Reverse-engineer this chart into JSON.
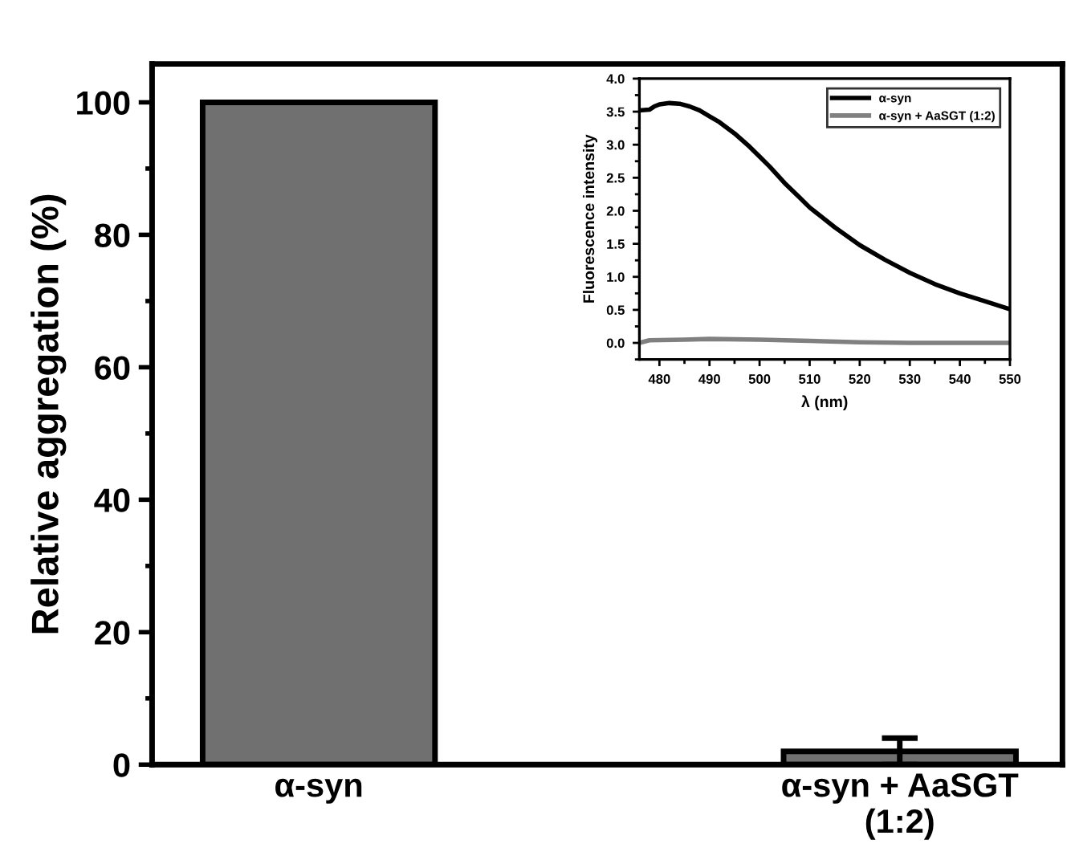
{
  "chart_data": [
    {
      "type": "bar",
      "ylabel": "Relative aggregation (%)",
      "categories": [
        "α-syn",
        "α-syn + AaSGT\n(1:2)"
      ],
      "values": [
        100,
        2
      ],
      "errors": [
        null,
        2
      ],
      "color": "#707070",
      "ylim": [
        0,
        105.8
      ],
      "yticks": [
        0,
        20,
        40,
        60,
        80,
        100
      ],
      "grid": false,
      "legend": false
    },
    {
      "type": "line",
      "xlabel": "λ (nm)",
      "ylabel": "Fluorescence intensity",
      "xlim": [
        476,
        550
      ],
      "xticks": [
        480,
        490,
        500,
        510,
        520,
        530,
        540,
        550
      ],
      "ylim": [
        -0.25,
        4.0
      ],
      "yticks": [
        {
          "value": 0,
          "label": "0.0"
        },
        0.5,
        {
          "value": 1,
          "label": "1.0"
        },
        1.5,
        {
          "value": 2,
          "label": "2.0"
        },
        2.5,
        {
          "value": 3,
          "label": "3.0"
        },
        3.5,
        {
          "value": 4,
          "label": "4.0"
        }
      ],
      "legend": "top right",
      "grid": false,
      "marker": "none",
      "line_style": "solid",
      "series": [
        {
          "name": "α-syn",
          "color": "#000000",
          "x": [
            476,
            478,
            479,
            480,
            482,
            484,
            486,
            488,
            490,
            492,
            495,
            498,
            500,
            502,
            505,
            508,
            510,
            515,
            520,
            525,
            530,
            535,
            540,
            545,
            550
          ],
          "values": [
            3.52,
            3.53,
            3.58,
            3.61,
            3.63,
            3.62,
            3.58,
            3.52,
            3.43,
            3.34,
            3.17,
            2.97,
            2.82,
            2.67,
            2.42,
            2.2,
            2.05,
            1.75,
            1.48,
            1.26,
            1.06,
            0.89,
            0.75,
            0.63,
            0.51
          ]
        },
        {
          "name": "α-syn + AaSGT (1:2)",
          "color": "#808080",
          "x": [
            476,
            478,
            485,
            490,
            500,
            510,
            520,
            530,
            550
          ],
          "values": [
            0.0,
            0.04,
            0.05,
            0.06,
            0.05,
            0.03,
            0.01,
            0.0,
            0.0
          ]
        }
      ]
    }
  ]
}
